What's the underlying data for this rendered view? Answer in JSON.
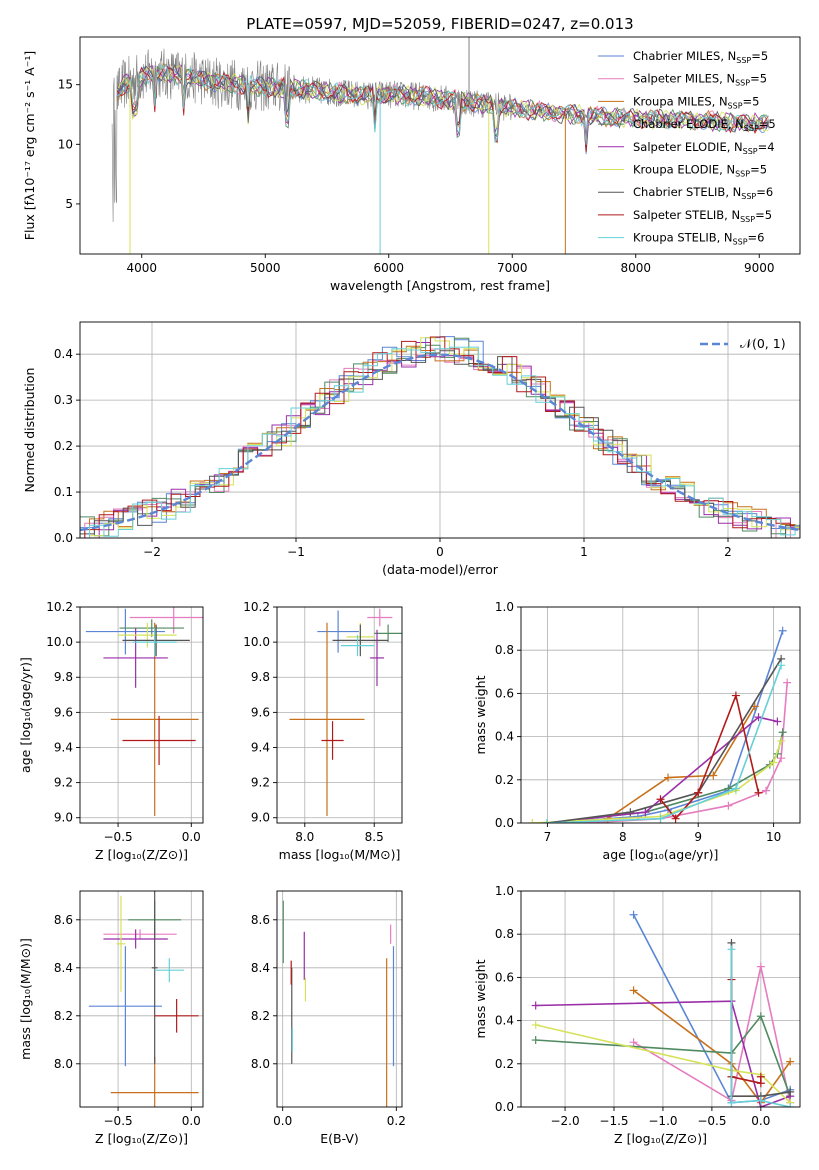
{
  "figure_title": "PLATE=0597, MJD=52059, FIBERID=0247, z=0.013",
  "model_colors": [
    "#5b86d6",
    "#e57cbf",
    "#c8701a",
    "#4f8a60",
    "#9b2ea8",
    "#d6e25a",
    "#555555",
    "#b21a1a",
    "#66d0d8"
  ],
  "chart_data": [
    {
      "id": "spectrum",
      "type": "line",
      "xlabel": "wavelength [Angstrom, rest frame]",
      "ylabel": "Flux [f",
      "xlim": [
        3500,
        9330
      ],
      "ylim": [
        0.8,
        19
      ],
      "xticks": [
        4000,
        5000,
        6000,
        7000,
        8000,
        9000
      ],
      "yticks": [
        5,
        10,
        15
      ],
      "grid": false,
      "legend_position": "upper right",
      "series": [
        {
          "name": "Chabrier MILES",
          "nssp": "=5"
        },
        {
          "name": "Salpeter MILES",
          "nssp": "=5"
        },
        {
          "name": "Kroupa MILES",
          "nssp": "=5"
        },
        {
          "name": "Chabrier ELODIE",
          "nssp": "=5"
        },
        {
          "name": "Salpeter ELODIE",
          "nssp": "=4"
        },
        {
          "name": "Kroupa ELODIE",
          "nssp": "=5"
        },
        {
          "name": "Chabrier STELIB",
          "nssp": "=6"
        },
        {
          "name": "Salpeter STELIB",
          "nssp": "=5"
        },
        {
          "name": "Kroupa STELIB",
          "nssp": "=6"
        }
      ],
      "continuum": [
        [
          3760,
          13.5
        ],
        [
          3850,
          15.0
        ],
        [
          3950,
          15.5
        ],
        [
          4100,
          16.0
        ],
        [
          4300,
          15.8
        ],
        [
          4600,
          15.2
        ],
        [
          4900,
          14.9
        ],
        [
          5200,
          14.7
        ],
        [
          5500,
          14.4
        ],
        [
          5800,
          14.1
        ],
        [
          6000,
          14.2
        ],
        [
          6300,
          14.0
        ],
        [
          6600,
          13.6
        ],
        [
          6900,
          13.2
        ],
        [
          7200,
          12.8
        ],
        [
          7400,
          12.6
        ],
        [
          7600,
          12.4
        ],
        [
          7900,
          12.2
        ],
        [
          8200,
          12.1
        ],
        [
          8500,
          12.0
        ],
        [
          8800,
          11.8
        ],
        [
          9100,
          11.7
        ]
      ]
    },
    {
      "id": "residuals",
      "type": "bar",
      "xlabel": "(data-model)/error",
      "ylabel": "Normed distribution",
      "xlim": [
        -2.5,
        2.5
      ],
      "ylim": [
        0,
        0.47
      ],
      "xticks": [
        -2,
        -1,
        0,
        1,
        2
      ],
      "yticks": [
        0.0,
        0.1,
        0.2,
        0.3,
        0.4
      ],
      "grid": true,
      "legend_position": "upper right",
      "reference_label": "𝒩(0, 1)"
    },
    {
      "id": "age_vs_Z",
      "type": "scatter",
      "xlabel": "Z [log₁₀(Z/Z⊙)]",
      "ylabel": "age  [log₁₀(age/yr)]",
      "xlim": [
        -0.76,
        0.08
      ],
      "ylim": [
        8.97,
        10.2
      ],
      "xticks": [
        -0.5,
        0.0
      ],
      "yticks": [
        9.0,
        9.2,
        9.4,
        9.6,
        9.8,
        10.0,
        10.2
      ],
      "grid": true,
      "points": [
        {
          "x": -0.45,
          "y": 10.06,
          "xerr": 0.27,
          "yerr": 0.13
        },
        {
          "x": -0.12,
          "y": 10.14,
          "xerr": 0.3,
          "yerr": 0.09
        },
        {
          "x": -0.25,
          "y": 9.56,
          "xerr": 0.3,
          "yerr": 0.55
        },
        {
          "x": -0.27,
          "y": 10.08,
          "xerr": 0.22,
          "yerr": 0.05
        },
        {
          "x": -0.38,
          "y": 9.91,
          "xerr": 0.22,
          "yerr": 0.17
        },
        {
          "x": -0.3,
          "y": 10.04,
          "xerr": 0.2,
          "yerr": 0.07
        },
        {
          "x": -0.24,
          "y": 10.01,
          "xerr": 0.23,
          "yerr": 0.09
        },
        {
          "x": -0.22,
          "y": 9.44,
          "xerr": 0.25,
          "yerr": 0.14
        },
        {
          "x": -0.25,
          "y": 10.0,
          "xerr": 0.15,
          "yerr": 0.08
        }
      ]
    },
    {
      "id": "age_vs_mass",
      "type": "scatter",
      "xlabel": "mass [log₁₀(M/M⊙)]",
      "ylabel": "",
      "xlim": [
        7.8,
        8.7
      ],
      "ylim": [
        8.97,
        10.2
      ],
      "xticks": [
        8.0,
        8.5
      ],
      "yticks": [
        9.0,
        9.2,
        9.4,
        9.6,
        9.8,
        10.0,
        10.2
      ],
      "grid": true,
      "points": [
        {
          "x": 8.24,
          "y": 10.06,
          "xerr": 0.15,
          "yerr": 0.12
        },
        {
          "x": 8.54,
          "y": 10.14,
          "xerr": 0.09,
          "yerr": 0.05
        },
        {
          "x": 8.16,
          "y": 9.56,
          "xerr": 0.27,
          "yerr": 0.55
        },
        {
          "x": 8.6,
          "y": 10.05,
          "xerr": 0.1,
          "yerr": 0.05
        },
        {
          "x": 8.52,
          "y": 9.91,
          "xerr": 0.05,
          "yerr": 0.16
        },
        {
          "x": 8.4,
          "y": 10.03,
          "xerr": 0.1,
          "yerr": 0.08
        },
        {
          "x": 8.4,
          "y": 10.01,
          "xerr": 0.2,
          "yerr": 0.09
        },
        {
          "x": 8.2,
          "y": 9.44,
          "xerr": 0.08,
          "yerr": 0.11
        },
        {
          "x": 8.38,
          "y": 9.98,
          "xerr": 0.12,
          "yerr": 0.06
        }
      ]
    },
    {
      "id": "massweight_vs_age",
      "type": "line",
      "xlabel": "age  [log₁₀(age/yr)]",
      "ylabel": "mass weight",
      "xlim": [
        6.65,
        10.35
      ],
      "ylim": [
        0,
        1.0
      ],
      "xticks": [
        7,
        8,
        9,
        10
      ],
      "yticks": [
        0.0,
        0.2,
        0.4,
        0.6,
        0.8,
        1.0
      ],
      "grid": true,
      "series": [
        {
          "points": [
            [
              7.0,
              0.0
            ],
            [
              8.2,
              0.03
            ],
            [
              8.6,
              0.06
            ],
            [
              9.4,
              0.15
            ],
            [
              10.12,
              0.89
            ]
          ]
        },
        {
          "points": [
            [
              7.5,
              0.0
            ],
            [
              8.5,
              0.02
            ],
            [
              9.4,
              0.08
            ],
            [
              9.9,
              0.15
            ],
            [
              10.1,
              0.3
            ],
            [
              10.18,
              0.65
            ]
          ]
        },
        {
          "points": [
            [
              7.8,
              0.02
            ],
            [
              8.6,
              0.21
            ],
            [
              9.2,
              0.22
            ],
            [
              9.75,
              0.54
            ]
          ]
        },
        {
          "points": [
            [
              7.0,
              0.0
            ],
            [
              8.3,
              0.05
            ],
            [
              9.4,
              0.16
            ],
            [
              9.95,
              0.27
            ],
            [
              10.05,
              0.32
            ],
            [
              10.12,
              0.42
            ]
          ]
        },
        {
          "points": [
            [
              7.0,
              0.0
            ],
            [
              8.3,
              0.05
            ],
            [
              9.8,
              0.49
            ],
            [
              10.05,
              0.47
            ]
          ]
        },
        {
          "points": [
            [
              6.8,
              0.0
            ],
            [
              8.5,
              0.03
            ],
            [
              9.5,
              0.15
            ],
            [
              10.0,
              0.28
            ],
            [
              10.1,
              0.38
            ]
          ]
        },
        {
          "points": [
            [
              7.0,
              0.0
            ],
            [
              8.1,
              0.05
            ],
            [
              9.0,
              0.14
            ],
            [
              10.1,
              0.76
            ]
          ]
        },
        {
          "points": [
            [
              8.5,
              0.11
            ],
            [
              8.7,
              0.02
            ],
            [
              9.0,
              0.14
            ],
            [
              9.5,
              0.59
            ],
            [
              9.8,
              0.14
            ]
          ]
        },
        {
          "points": [
            [
              7.0,
              0.0
            ],
            [
              8.5,
              0.02
            ],
            [
              9.5,
              0.16
            ],
            [
              10.1,
              0.73
            ]
          ]
        }
      ]
    },
    {
      "id": "mass_vs_Z",
      "type": "scatter",
      "xlabel": "Z [log₁₀(Z/Z⊙)]",
      "ylabel": "mass [log₁₀(M/M⊙)]",
      "xlim": [
        -0.76,
        0.08
      ],
      "ylim": [
        7.82,
        8.72
      ],
      "xticks": [
        -0.5,
        0.0
      ],
      "yticks": [
        8.0,
        8.2,
        8.4,
        8.6
      ],
      "grid": true,
      "points": [
        {
          "x": -0.45,
          "y": 8.24,
          "xerr": 0.25,
          "yerr": 0.25
        },
        {
          "x": -0.35,
          "y": 8.54,
          "xerr": 0.25,
          "yerr": 0.02
        },
        {
          "x": -0.25,
          "y": 7.88,
          "xerr": 0.3,
          "yerr": 0.15
        },
        {
          "x": -0.25,
          "y": 8.6,
          "xerr": 0.18,
          "yerr": 0.08
        },
        {
          "x": -0.38,
          "y": 8.52,
          "xerr": 0.22,
          "yerr": 0.04
        },
        {
          "x": -0.48,
          "y": 8.5,
          "xerr": 0.03,
          "yerr": 0.2
        },
        {
          "x": -0.25,
          "y": 8.4,
          "xerr": 0.02,
          "yerr": 0.4
        },
        {
          "x": -0.1,
          "y": 8.2,
          "xerr": 0.15,
          "yerr": 0.07
        },
        {
          "x": -0.15,
          "y": 8.39,
          "xerr": 0.1,
          "yerr": 0.05
        }
      ]
    },
    {
      "id": "mass_vs_ebv",
      "type": "scatter",
      "xlabel": "E(B-V)",
      "ylabel": "",
      "xlim": [
        -0.01,
        0.21
      ],
      "ylim": [
        7.82,
        8.72
      ],
      "xticks": [
        0.0,
        0.2
      ],
      "yticks": [
        8.0,
        8.2,
        8.4,
        8.6
      ],
      "grid": true,
      "points": [
        {
          "x": 0.195,
          "y": 8.24,
          "xerr": 0,
          "yerr": 0.25
        },
        {
          "x": 0.19,
          "y": 8.54,
          "xerr": 0,
          "yerr": 0.04
        },
        {
          "x": 0.183,
          "y": 8.08,
          "xerr": 0,
          "yerr": 0.36
        },
        {
          "x": 0.001,
          "y": 8.55,
          "xerr": 0,
          "yerr": 0.13
        },
        {
          "x": 0.038,
          "y": 8.45,
          "xerr": 0,
          "yerr": 0.1
        },
        {
          "x": 0.04,
          "y": 8.31,
          "xerr": 0,
          "yerr": 0.05
        },
        {
          "x": 0.016,
          "y": 8.2,
          "xerr": 0,
          "yerr": 0.2
        },
        {
          "x": 0.015,
          "y": 8.38,
          "xerr": 0,
          "yerr": 0.05
        },
        {
          "x": 0.017,
          "y": 8.1,
          "xerr": 0,
          "yerr": 0.05
        }
      ]
    },
    {
      "id": "massweight_vs_Z",
      "type": "line",
      "xlabel": "Z [log₁₀(Z/Z⊙)]",
      "ylabel": "mass weight",
      "xlim": [
        -2.45,
        0.4
      ],
      "ylim": [
        0,
        1.0
      ],
      "xticks": [
        -2.0,
        -1.5,
        -1.0,
        -0.5,
        0.0
      ],
      "yticks": [
        0.0,
        0.2,
        0.4,
        0.6,
        0.8,
        1.0
      ],
      "grid": true,
      "series": [
        {
          "points": [
            [
              -1.3,
              0.89
            ],
            [
              -0.3,
              0.02
            ],
            [
              0.0,
              0.03
            ],
            [
              0.3,
              0.08
            ]
          ]
        },
        {
          "points": [
            [
              -1.3,
              0.3
            ],
            [
              -0.3,
              0.03
            ],
            [
              0.0,
              0.65
            ],
            [
              0.3,
              0.02
            ]
          ]
        },
        {
          "points": [
            [
              -1.3,
              0.54
            ],
            [
              -0.3,
              0.2
            ],
            [
              0.0,
              0.02
            ],
            [
              0.3,
              0.21
            ]
          ]
        },
        {
          "points": [
            [
              -2.3,
              0.31
            ],
            [
              -0.3,
              0.25
            ],
            [
              0.0,
              0.42
            ],
            [
              0.3,
              0.05
            ]
          ]
        },
        {
          "points": [
            [
              -2.3,
              0.47
            ],
            [
              -0.3,
              0.49
            ],
            [
              0.0,
              0.0
            ],
            [
              0.3,
              0.05
            ]
          ]
        },
        {
          "points": [
            [
              -2.3,
              0.38
            ],
            [
              -0.3,
              0.17
            ],
            [
              0.0,
              0.15
            ],
            [
              0.3,
              0.02
            ]
          ]
        },
        {
          "points": [
            [
              -0.3,
              0.76
            ],
            [
              -0.3,
              0.05
            ],
            [
              0.0,
              0.05
            ],
            [
              0.3,
              0.07
            ]
          ]
        },
        {
          "points": [
            [
              -0.3,
              0.59
            ],
            [
              -0.3,
              0.14
            ],
            [
              0.0,
              0.11
            ],
            [
              0.0,
              0.14
            ]
          ]
        },
        {
          "points": [
            [
              -0.3,
              0.73
            ],
            [
              -0.3,
              0.02
            ],
            [
              0.0,
              0.03
            ],
            [
              0.3,
              0.0
            ]
          ]
        }
      ]
    }
  ]
}
